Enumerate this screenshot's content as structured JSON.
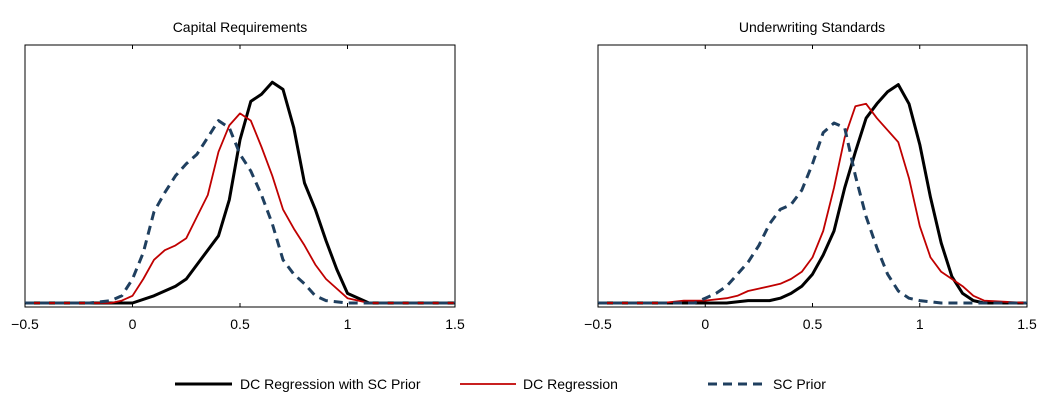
{
  "chart_data": [
    {
      "type": "line",
      "title": "Capital Requirements",
      "xlim": [
        -0.5,
        1.5
      ],
      "ylim": [
        0,
        1
      ],
      "x_ticks": [
        -0.5,
        0,
        0.5,
        1,
        1.5
      ],
      "x_tick_labels": [
        "−0.5",
        "0",
        "0.5",
        "1",
        "1.5"
      ],
      "yticks_shown": false,
      "grid": false,
      "series": [
        {
          "name": "DC Regression with SC Prior",
          "x": [
            -0.5,
            0.0,
            0.1,
            0.2,
            0.25,
            0.3,
            0.4,
            0.45,
            0.5,
            0.55,
            0.6,
            0.65,
            0.7,
            0.75,
            0.8,
            0.85,
            0.9,
            0.95,
            1.0,
            1.1,
            1.5
          ],
          "y": [
            0.0,
            0.0,
            0.03,
            0.07,
            0.1,
            0.16,
            0.28,
            0.43,
            0.68,
            0.84,
            0.87,
            0.92,
            0.89,
            0.73,
            0.5,
            0.39,
            0.26,
            0.14,
            0.04,
            0.0,
            0.0
          ]
        },
        {
          "name": "DC Regression",
          "x": [
            -0.5,
            -0.1,
            -0.05,
            0.0,
            0.05,
            0.1,
            0.15,
            0.2,
            0.25,
            0.3,
            0.35,
            0.4,
            0.45,
            0.5,
            0.55,
            0.6,
            0.65,
            0.7,
            0.75,
            0.8,
            0.85,
            0.9,
            1.0,
            1.1,
            1.5
          ],
          "y": [
            0.0,
            0.0,
            0.01,
            0.03,
            0.1,
            0.18,
            0.22,
            0.24,
            0.27,
            0.36,
            0.45,
            0.63,
            0.74,
            0.79,
            0.76,
            0.65,
            0.53,
            0.39,
            0.31,
            0.24,
            0.16,
            0.1,
            0.02,
            0.0,
            0.0
          ]
        },
        {
          "name": "SC Prior",
          "x": [
            -0.5,
            -0.2,
            -0.1,
            -0.05,
            0.0,
            0.05,
            0.1,
            0.15,
            0.2,
            0.25,
            0.3,
            0.35,
            0.4,
            0.45,
            0.5,
            0.55,
            0.6,
            0.65,
            0.7,
            0.75,
            0.8,
            0.85,
            0.9,
            1.0,
            1.5
          ],
          "y": [
            0.0,
            0.0,
            0.01,
            0.03,
            0.1,
            0.21,
            0.38,
            0.46,
            0.53,
            0.58,
            0.62,
            0.69,
            0.76,
            0.73,
            0.62,
            0.55,
            0.45,
            0.33,
            0.18,
            0.12,
            0.08,
            0.03,
            0.01,
            0.0,
            0.0
          ]
        }
      ]
    },
    {
      "type": "line",
      "title": "Underwriting Standards",
      "xlim": [
        -0.5,
        1.5
      ],
      "ylim": [
        0,
        1
      ],
      "x_ticks": [
        -0.5,
        0,
        0.5,
        1,
        1.5
      ],
      "x_tick_labels": [
        "−0.5",
        "0",
        "0.5",
        "1",
        "1.5"
      ],
      "yticks_shown": false,
      "grid": false,
      "series": [
        {
          "name": "DC Regression with SC Prior",
          "x": [
            -0.5,
            0.1,
            0.2,
            0.3,
            0.35,
            0.4,
            0.45,
            0.5,
            0.55,
            0.6,
            0.65,
            0.7,
            0.75,
            0.8,
            0.85,
            0.9,
            0.95,
            1.0,
            1.05,
            1.1,
            1.15,
            1.2,
            1.25,
            1.3,
            1.5
          ],
          "y": [
            0.0,
            0.0,
            0.01,
            0.01,
            0.02,
            0.04,
            0.07,
            0.12,
            0.2,
            0.3,
            0.48,
            0.63,
            0.77,
            0.83,
            0.88,
            0.91,
            0.83,
            0.66,
            0.44,
            0.25,
            0.11,
            0.04,
            0.01,
            0.0,
            0.0
          ]
        },
        {
          "name": "DC Regression",
          "x": [
            -0.5,
            -0.2,
            -0.1,
            0.0,
            0.1,
            0.15,
            0.2,
            0.25,
            0.3,
            0.35,
            0.4,
            0.45,
            0.5,
            0.55,
            0.6,
            0.65,
            0.7,
            0.75,
            0.8,
            0.85,
            0.9,
            0.95,
            1.0,
            1.05,
            1.1,
            1.15,
            1.2,
            1.25,
            1.3,
            1.5
          ],
          "y": [
            0.0,
            0.0,
            0.01,
            0.01,
            0.02,
            0.03,
            0.05,
            0.06,
            0.07,
            0.08,
            0.1,
            0.13,
            0.19,
            0.3,
            0.48,
            0.69,
            0.82,
            0.83,
            0.77,
            0.72,
            0.67,
            0.52,
            0.32,
            0.19,
            0.13,
            0.1,
            0.07,
            0.03,
            0.01,
            0.0
          ]
        },
        {
          "name": "SC Prior",
          "x": [
            -0.5,
            -0.05,
            0.0,
            0.05,
            0.1,
            0.15,
            0.2,
            0.25,
            0.3,
            0.35,
            0.4,
            0.45,
            0.5,
            0.55,
            0.6,
            0.65,
            0.7,
            0.75,
            0.8,
            0.85,
            0.9,
            0.95,
            1.0,
            1.1,
            1.5
          ],
          "y": [
            0.0,
            0.0,
            0.02,
            0.04,
            0.07,
            0.12,
            0.17,
            0.24,
            0.33,
            0.39,
            0.41,
            0.47,
            0.58,
            0.71,
            0.75,
            0.73,
            0.53,
            0.36,
            0.23,
            0.12,
            0.05,
            0.02,
            0.01,
            0.0,
            0.0
          ]
        }
      ]
    }
  ],
  "legend": {
    "position": "bottom-center",
    "entries": [
      {
        "label": "DC Regression with SC Prior",
        "color": "#000000",
        "style": "solid-thick"
      },
      {
        "label": "DC Regression",
        "color": "#c00000",
        "style": "solid-thin"
      },
      {
        "label": "SC Prior",
        "color": "#1f3f5f",
        "style": "dashed-thick"
      }
    ]
  },
  "colors": {
    "dc_regression_with_sc_prior": "#000000",
    "dc_regression": "#c00000",
    "sc_prior": "#1f3f5f"
  }
}
